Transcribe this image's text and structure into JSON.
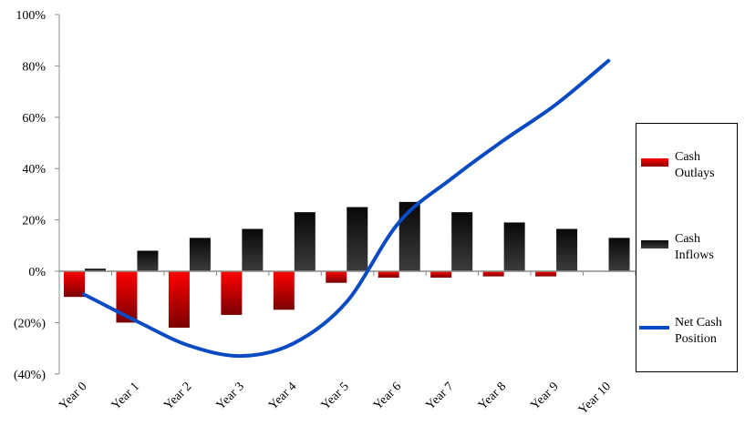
{
  "chart_data": {
    "type": "bar",
    "title": "",
    "xlabel": "",
    "ylabel": "",
    "ylim": [
      -40,
      100
    ],
    "yticks": [
      100,
      80,
      60,
      40,
      20,
      0,
      -20,
      -40
    ],
    "ytick_labels": [
      "100%",
      "80%",
      "60%",
      "40%",
      "20%",
      "0%",
      "(20%)",
      "(40%)"
    ],
    "categories": [
      "Year 0",
      "Year 1",
      "Year 2",
      "Year 3",
      "Year 4",
      "Year 5",
      "Year 6",
      "Year 7",
      "Year 8",
      "Year 9",
      "Year 10"
    ],
    "series": [
      {
        "name": "Cash Outlays",
        "type": "bar",
        "color": "#e00000",
        "values": [
          -10,
          -20,
          -22,
          -17,
          -15,
          -4.5,
          -2.5,
          -2.5,
          -2,
          -2,
          0
        ]
      },
      {
        "name": "Cash Inflows",
        "type": "bar",
        "color": "#222222",
        "values": [
          1,
          8,
          13,
          16.5,
          23,
          25,
          27,
          23,
          19,
          16.5,
          13
        ]
      },
      {
        "name": "Net Cash Position",
        "type": "line",
        "color": "#0a4bc4",
        "values": [
          -9,
          -19.5,
          -29,
          -33,
          -28,
          -12,
          19,
          36,
          51,
          65,
          82
        ]
      }
    ],
    "grid": false,
    "legend_position": "right"
  },
  "legend": {
    "items": [
      {
        "line1": "Cash",
        "line2": "Outlays"
      },
      {
        "line1": "Cash",
        "line2": "Inflows"
      },
      {
        "line1": "Net Cash",
        "line2": "Position"
      }
    ]
  }
}
